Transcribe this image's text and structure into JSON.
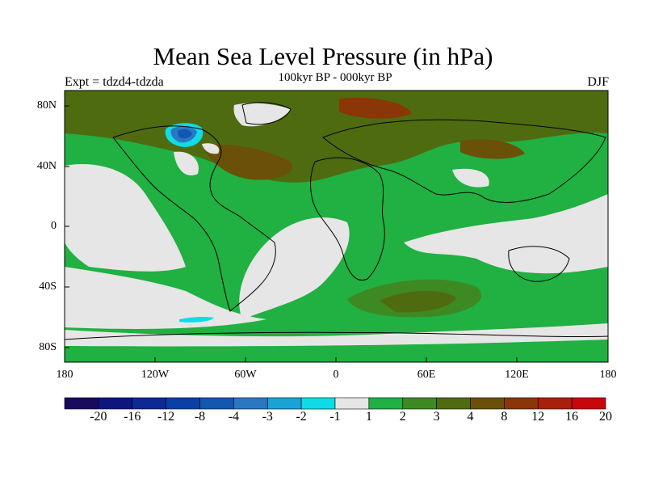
{
  "header": {
    "title": "Mean Sea Level Pressure (in hPa)",
    "subtitle": "100kyr BP - 000kyr BP",
    "experiment": "Expt = tdzd4-tdzda",
    "season": "DJF"
  },
  "axes": {
    "lat_ticks": [
      {
        "label": "80N",
        "value": 80
      },
      {
        "label": "40N",
        "value": 40
      },
      {
        "label": "0",
        "value": 0
      },
      {
        "label": "40S",
        "value": -40
      },
      {
        "label": "80S",
        "value": -80
      }
    ],
    "lon_ticks": [
      {
        "label": "180",
        "value": -180
      },
      {
        "label": "120W",
        "value": -120
      },
      {
        "label": "60W",
        "value": -60
      },
      {
        "label": "0",
        "value": 0
      },
      {
        "label": "60E",
        "value": 60
      },
      {
        "label": "120E",
        "value": 120
      },
      {
        "label": "180",
        "value": 180
      }
    ]
  },
  "colorbar": {
    "labels": [
      "-20",
      "-16",
      "-12",
      "-8",
      "-4",
      "-3",
      "-2",
      "-1",
      "1",
      "2",
      "3",
      "4",
      "8",
      "12",
      "16",
      "20"
    ],
    "colors": [
      "#1a0a5e",
      "#0d157e",
      "#0b2a94",
      "#0a3fa3",
      "#1257b0",
      "#2a78c2",
      "#1aa3d6",
      "#10dbe8",
      "#e6e6e6",
      "#21b042",
      "#3e8a22",
      "#4f6b10",
      "#6b5007",
      "#8a3606",
      "#a8200a",
      "#c8060c"
    ]
  }
}
